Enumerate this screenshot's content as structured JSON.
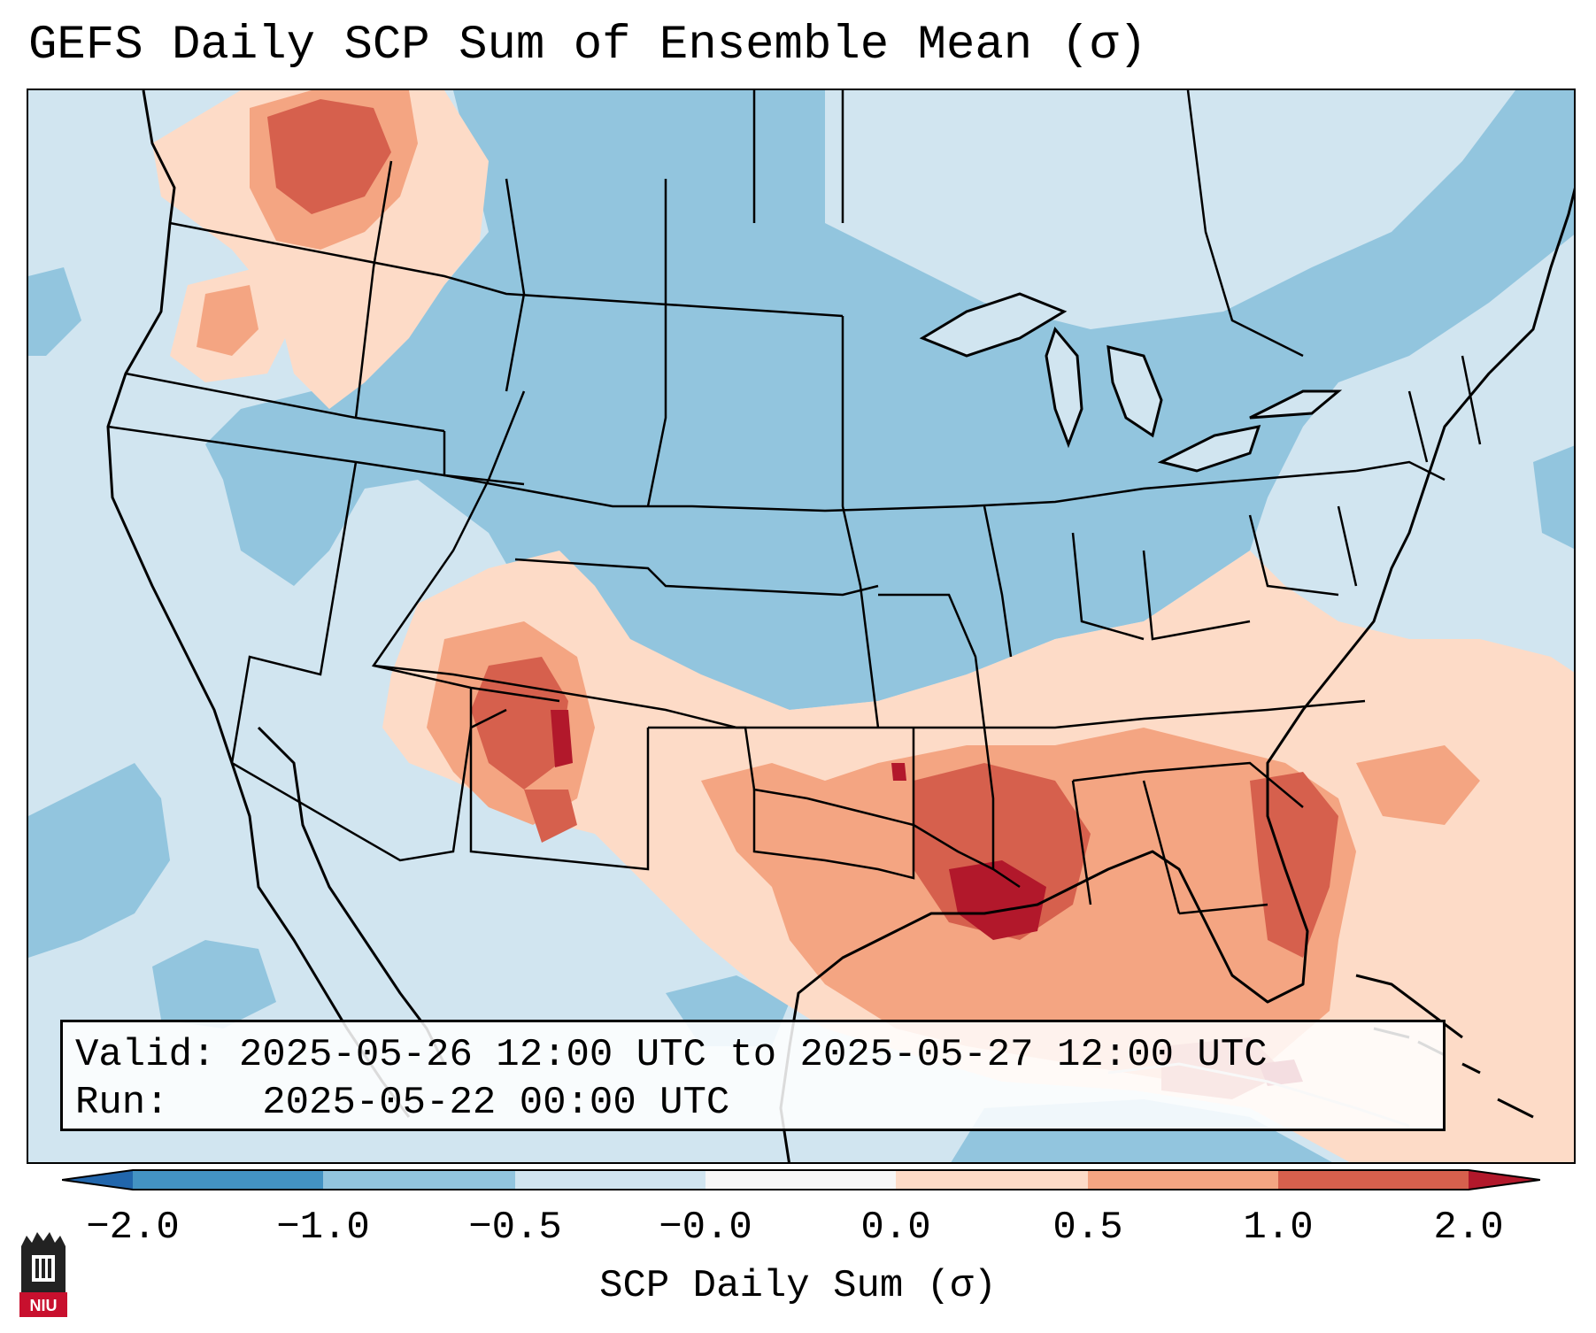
{
  "title": "GEFS Daily SCP Sum of Ensemble Mean (σ)",
  "info": {
    "valid_label": "Valid:",
    "valid_value": "2025-05-26 12:00 UTC to 2025-05-27 12:00 UTC",
    "run_label": "Run:",
    "run_value": "2025-05-22 00:00 UTC"
  },
  "colorbar": {
    "label": "SCP Daily Sum (σ)",
    "ticks": [
      "−2.0",
      "−1.0",
      "−0.5",
      "−0.0",
      "0.0",
      "0.5",
      "1.0",
      "2.0"
    ],
    "colors": {
      "extend_low": "#2166ac",
      "bin_-2_-1": "#4393c3",
      "bin_-1_-0.5": "#92c5de",
      "bin_-0.5_0": "#d1e5f0",
      "bin_0_0": "#f7f7f7",
      "bin_0_0.5": "#fddbc7",
      "bin_0.5_1": "#f4a582",
      "bin_1_2": "#d6604d",
      "extend_high": "#b2182b"
    }
  },
  "logo": {
    "text": "NIU"
  }
}
